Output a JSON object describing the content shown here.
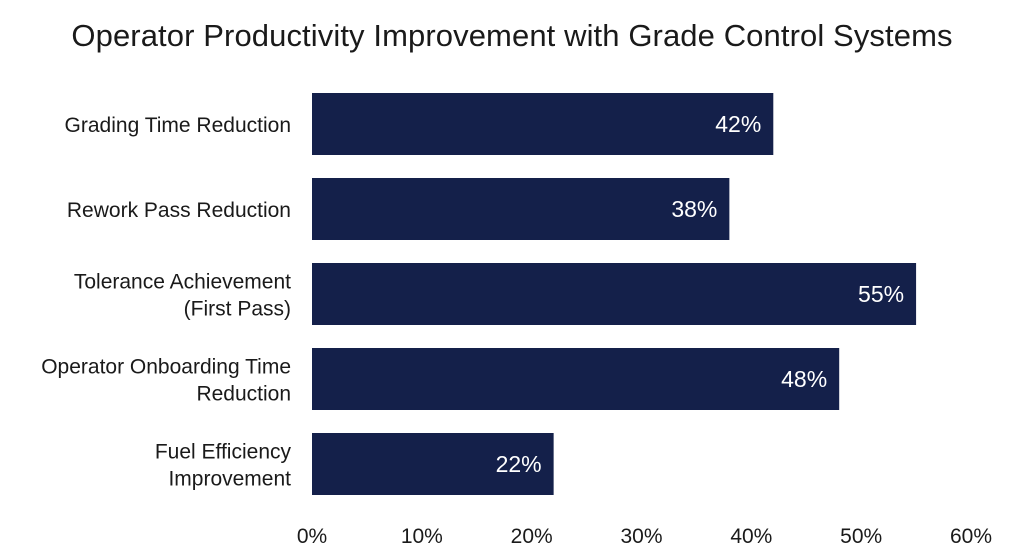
{
  "chart_data": {
    "type": "bar",
    "orientation": "horizontal",
    "title": "Operator Productivity Improvement with Grade Control Systems",
    "categories": [
      [
        "Grading Time Reduction"
      ],
      [
        "Rework Pass Reduction"
      ],
      [
        "Tolerance Achievement",
        "(First Pass)"
      ],
      [
        "Operator Onboarding Time",
        "Reduction"
      ],
      [
        "Fuel Efficiency",
        "Improvement"
      ]
    ],
    "values": [
      42,
      38,
      55,
      48,
      22
    ],
    "data_labels": [
      "42%",
      "38%",
      "55%",
      "48%",
      "22%"
    ],
    "xlim": [
      0,
      60
    ],
    "xticks": [
      0,
      10,
      20,
      30,
      40,
      50,
      60
    ],
    "xtick_labels": [
      "0%",
      "10%",
      "20%",
      "30%",
      "40%",
      "50%",
      "60%"
    ],
    "xlabel": "",
    "ylabel": "",
    "grid": false,
    "legend": "none",
    "bar_color": "#14204a",
    "label_color": "#ffffff"
  }
}
